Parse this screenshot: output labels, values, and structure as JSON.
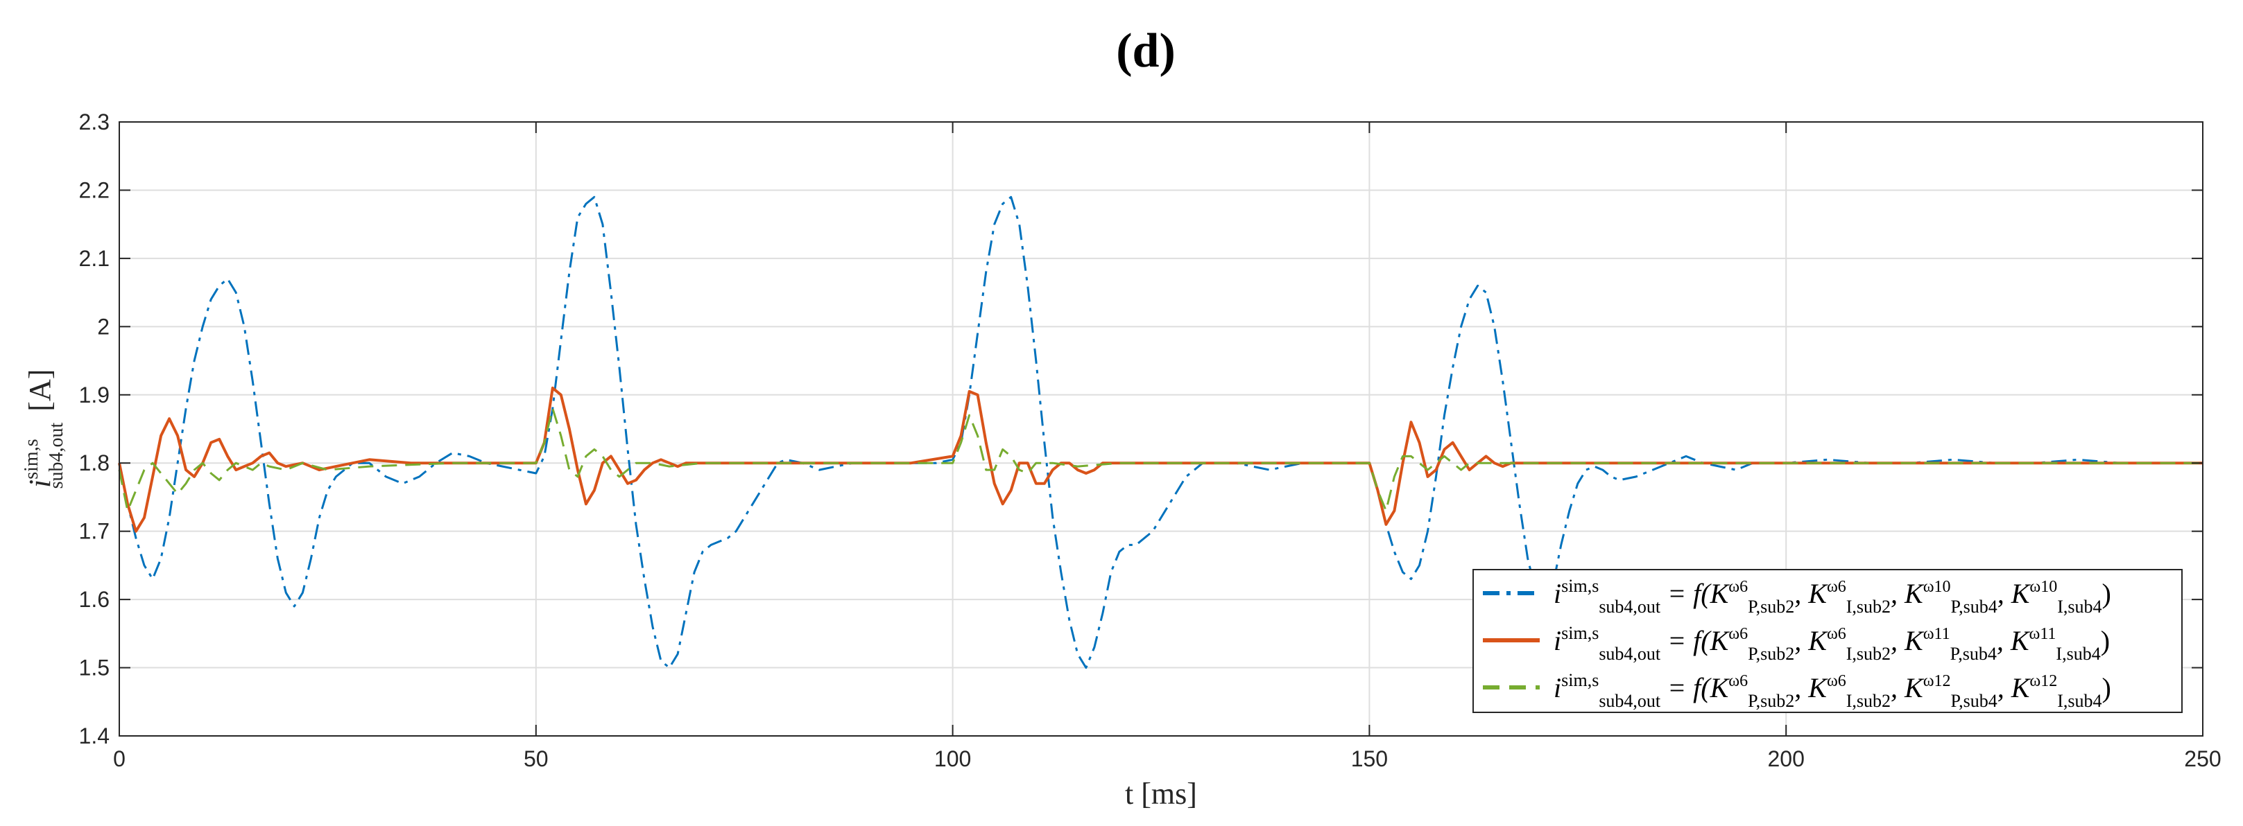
{
  "panel_label": "(d)",
  "chart_data": {
    "type": "line",
    "xlabel": "t [ms]",
    "ylabel": "i_sub4,out^sim,s [A]",
    "ylabel_parts": {
      "symbol": "i",
      "sup": "sim,s",
      "sub": "sub4,out",
      "unit": "[A]"
    },
    "xlim": [
      0,
      250
    ],
    "ylim": [
      1.4,
      2.3
    ],
    "xticks": [
      0,
      50,
      100,
      150,
      200,
      250
    ],
    "yticks": [
      1.4,
      1.5,
      1.6,
      1.7,
      1.8,
      1.9,
      2.0,
      2.1,
      2.2,
      2.3
    ],
    "xtick_labels": [
      "0",
      "50",
      "100",
      "150",
      "200",
      "250"
    ],
    "ytick_labels": [
      "1.4",
      "1.5",
      "1.6",
      "1.7",
      "1.8",
      "1.9",
      "2",
      "2.1",
      "2.2",
      "2.3"
    ],
    "grid": true,
    "legend_position": "bottom-right",
    "legend_entries": [
      "i_sub4,out^sim,s = f(K_P,sub2^ω6, K_I,sub2^ω6, K_P,sub4^ω10, K_I,sub4^ω10)",
      "i_sub4,out^sim,s = f(K_P,sub2^ω6, K_I,sub2^ω6, K_P,sub4^ω11, K_I,sub4^ω11)",
      "i_sub4,out^sim,s = f(K_P,sub2^ω6, K_I,sub2^ω6, K_P,sub4^ω12, K_I,sub4^ω12)"
    ],
    "legend_omegas": [
      "ω10",
      "ω11",
      "ω12"
    ],
    "series": [
      {
        "name": "i_sub4,out^sim,s = f(K_P,sub2^ω6, K_I,sub2^ω6, K_P,sub4^ω10, K_I,sub4^ω10)",
        "color": "#0072BD",
        "dash": "dashdot",
        "x": [
          0,
          1,
          2,
          3,
          4,
          5,
          6,
          7,
          8,
          9,
          10,
          11,
          12,
          13,
          14,
          15,
          16,
          17,
          18,
          19,
          20,
          21,
          22,
          23,
          24,
          25,
          26,
          27,
          28,
          30,
          32,
          34,
          36,
          38,
          40,
          42,
          44,
          46,
          48,
          50,
          51,
          52,
          53,
          54,
          55,
          56,
          57,
          58,
          59,
          60,
          61,
          62,
          63,
          64,
          65,
          66,
          67,
          68,
          69,
          70,
          71,
          72,
          73,
          74,
          75,
          76,
          77,
          78,
          79,
          80,
          82,
          84,
          86,
          88,
          90,
          92,
          94,
          96,
          98,
          100,
          101,
          102,
          103,
          104,
          105,
          106,
          107,
          108,
          109,
          110,
          111,
          112,
          113,
          114,
          115,
          116,
          117,
          118,
          119,
          120,
          121,
          122,
          123,
          124,
          125,
          126,
          127,
          128,
          129,
          130,
          132,
          134,
          136,
          138,
          140,
          142,
          144,
          146,
          148,
          150,
          151,
          152,
          153,
          154,
          155,
          156,
          157,
          158,
          159,
          160,
          161,
          162,
          163,
          164,
          165,
          166,
          167,
          168,
          169,
          170,
          171,
          172,
          173,
          174,
          175,
          176,
          177,
          178,
          179,
          180,
          182,
          184,
          186,
          188,
          190,
          192,
          194,
          196,
          198,
          200,
          205,
          210,
          215,
          220,
          225,
          230,
          235,
          240,
          245,
          250
        ],
        "y": [
          1.8,
          1.74,
          1.69,
          1.65,
          1.63,
          1.66,
          1.72,
          1.8,
          1.88,
          1.95,
          2.0,
          2.04,
          2.06,
          2.07,
          2.05,
          2.0,
          1.92,
          1.83,
          1.74,
          1.66,
          1.61,
          1.59,
          1.61,
          1.66,
          1.72,
          1.76,
          1.78,
          1.79,
          1.8,
          1.8,
          1.78,
          1.77,
          1.78,
          1.8,
          1.815,
          1.81,
          1.8,
          1.795,
          1.79,
          1.785,
          1.81,
          1.88,
          1.98,
          2.08,
          2.16,
          2.18,
          2.19,
          2.15,
          2.05,
          1.94,
          1.82,
          1.71,
          1.63,
          1.56,
          1.51,
          1.5,
          1.52,
          1.58,
          1.64,
          1.67,
          1.68,
          1.685,
          1.69,
          1.7,
          1.72,
          1.74,
          1.76,
          1.78,
          1.8,
          1.805,
          1.8,
          1.79,
          1.795,
          1.8,
          1.8,
          1.8,
          1.8,
          1.8,
          1.8,
          1.805,
          1.83,
          1.9,
          1.99,
          2.08,
          2.15,
          2.18,
          2.19,
          2.15,
          2.06,
          1.95,
          1.83,
          1.72,
          1.64,
          1.57,
          1.52,
          1.5,
          1.53,
          1.58,
          1.64,
          1.67,
          1.68,
          1.68,
          1.69,
          1.7,
          1.72,
          1.74,
          1.76,
          1.78,
          1.79,
          1.8,
          1.8,
          1.8,
          1.795,
          1.79,
          1.795,
          1.8,
          1.8,
          1.8,
          1.8,
          1.8,
          1.76,
          1.71,
          1.67,
          1.64,
          1.63,
          1.65,
          1.7,
          1.78,
          1.87,
          1.94,
          2.0,
          2.04,
          2.06,
          2.05,
          2.0,
          1.92,
          1.83,
          1.74,
          1.66,
          1.61,
          1.59,
          1.62,
          1.68,
          1.73,
          1.77,
          1.79,
          1.795,
          1.79,
          1.78,
          1.775,
          1.78,
          1.79,
          1.8,
          1.81,
          1.8,
          1.795,
          1.79,
          1.8,
          1.8,
          1.8,
          1.805,
          1.8,
          1.8,
          1.805,
          1.8,
          1.8,
          1.805,
          1.8,
          1.8,
          1.8
        ]
      },
      {
        "name": "i_sub4,out^sim,s = f(K_P,sub2^ω6, K_I,sub2^ω6, K_P,sub4^ω11, K_I,sub4^ω11)",
        "color": "#D95319",
        "dash": "solid",
        "x": [
          0,
          1,
          2,
          3,
          4,
          5,
          6,
          7,
          8,
          9,
          10,
          11,
          12,
          13,
          14,
          15,
          16,
          17,
          18,
          19,
          20,
          22,
          24,
          26,
          28,
          30,
          35,
          40,
          45,
          50,
          51,
          52,
          53,
          54,
          55,
          56,
          57,
          58,
          59,
          60,
          61,
          62,
          63,
          64,
          65,
          66,
          67,
          68,
          70,
          72,
          75,
          80,
          85,
          90,
          95,
          100,
          101,
          102,
          103,
          104,
          105,
          106,
          107,
          108,
          109,
          110,
          111,
          112,
          113,
          114,
          115,
          116,
          117,
          118,
          120,
          122,
          125,
          130,
          135,
          140,
          145,
          150,
          151,
          152,
          153,
          154,
          155,
          156,
          157,
          158,
          159,
          160,
          161,
          162,
          163,
          164,
          165,
          166,
          167,
          168,
          170,
          172,
          175,
          180,
          185,
          190,
          195,
          200,
          205,
          210,
          215,
          220,
          225,
          230,
          235,
          240,
          245,
          250
        ],
        "y": [
          1.8,
          1.74,
          1.7,
          1.72,
          1.78,
          1.84,
          1.865,
          1.84,
          1.79,
          1.78,
          1.8,
          1.83,
          1.835,
          1.81,
          1.79,
          1.795,
          1.8,
          1.81,
          1.815,
          1.8,
          1.795,
          1.8,
          1.79,
          1.795,
          1.8,
          1.805,
          1.8,
          1.8,
          1.8,
          1.8,
          1.83,
          1.91,
          1.9,
          1.85,
          1.79,
          1.74,
          1.76,
          1.8,
          1.81,
          1.79,
          1.77,
          1.775,
          1.79,
          1.8,
          1.805,
          1.8,
          1.795,
          1.8,
          1.8,
          1.8,
          1.8,
          1.8,
          1.8,
          1.8,
          1.8,
          1.81,
          1.84,
          1.905,
          1.9,
          1.83,
          1.77,
          1.74,
          1.76,
          1.8,
          1.8,
          1.77,
          1.77,
          1.79,
          1.8,
          1.8,
          1.79,
          1.785,
          1.79,
          1.8,
          1.8,
          1.8,
          1.8,
          1.8,
          1.8,
          1.8,
          1.8,
          1.8,
          1.76,
          1.71,
          1.73,
          1.8,
          1.86,
          1.83,
          1.78,
          1.79,
          1.82,
          1.83,
          1.81,
          1.79,
          1.8,
          1.81,
          1.8,
          1.795,
          1.8,
          1.8,
          1.8,
          1.8,
          1.8,
          1.8,
          1.8,
          1.8,
          1.8,
          1.8,
          1.8,
          1.8,
          1.8,
          1.8,
          1.8,
          1.8,
          1.8,
          1.8,
          1.8,
          1.8
        ]
      },
      {
        "name": "i_sub4,out^sim,s = f(K_P,sub2^ω6, K_I,sub2^ω6, K_P,sub4^ω12, K_I,sub4^ω12)",
        "color": "#77AC30",
        "dash": "dashed",
        "x": [
          0,
          1,
          2,
          3,
          4,
          5,
          6,
          7,
          8,
          9,
          10,
          11,
          12,
          13,
          14,
          15,
          16,
          17,
          18,
          20,
          22,
          25,
          30,
          40,
          50,
          51,
          52,
          53,
          54,
          55,
          56,
          57,
          58,
          59,
          60,
          62,
          64,
          66,
          70,
          80,
          90,
          100,
          101,
          102,
          103,
          104,
          105,
          106,
          107,
          108,
          109,
          110,
          112,
          115,
          120,
          130,
          140,
          150,
          151,
          152,
          153,
          154,
          155,
          156,
          157,
          158,
          159,
          160,
          161,
          162,
          164,
          166,
          170,
          180,
          190,
          200,
          210,
          220,
          230,
          240,
          250
        ],
        "y": [
          1.79,
          1.73,
          1.76,
          1.79,
          1.8,
          1.785,
          1.77,
          1.755,
          1.77,
          1.79,
          1.8,
          1.785,
          1.775,
          1.79,
          1.8,
          1.795,
          1.79,
          1.8,
          1.795,
          1.79,
          1.8,
          1.79,
          1.795,
          1.8,
          1.8,
          1.83,
          1.88,
          1.84,
          1.79,
          1.78,
          1.81,
          1.82,
          1.81,
          1.79,
          1.78,
          1.8,
          1.8,
          1.795,
          1.8,
          1.8,
          1.8,
          1.8,
          1.83,
          1.87,
          1.84,
          1.79,
          1.79,
          1.82,
          1.81,
          1.79,
          1.785,
          1.8,
          1.8,
          1.795,
          1.8,
          1.8,
          1.8,
          1.8,
          1.76,
          1.73,
          1.78,
          1.81,
          1.81,
          1.8,
          1.79,
          1.8,
          1.81,
          1.8,
          1.79,
          1.8,
          1.8,
          1.8,
          1.8,
          1.8,
          1.8,
          1.8,
          1.8,
          1.8,
          1.8,
          1.8,
          1.8
        ]
      }
    ]
  }
}
